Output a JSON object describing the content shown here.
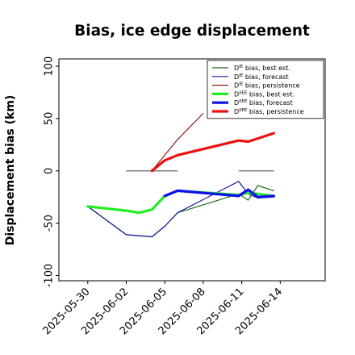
{
  "chart_data": {
    "type": "line",
    "title": "Bias, ice edge displacement",
    "xlabel": "",
    "ylabel": "Displacement bias (km)",
    "ylim": [
      -105,
      107
    ],
    "xlim": [
      "2025-05-27T18:00",
      "2025-06-17T12:00"
    ],
    "yticks": [
      100,
      50,
      0,
      -50,
      -100
    ],
    "xticks": [
      {
        "date": "2025-05-30",
        "label": "2025-05-30",
        "color": "#000000"
      },
      {
        "date": "2025-06-02",
        "label": "2025-06-02",
        "color": "#000000"
      },
      {
        "date": "2025-06-05",
        "label": "2025-06-05",
        "color": "#2e8b2e"
      },
      {
        "date": "2025-06-08",
        "label": "2025-06-08",
        "color": "#000000"
      },
      {
        "date": "2025-06-11",
        "label": "2025-06-11",
        "color": "#000000"
      },
      {
        "date": "2025-06-14",
        "label": "2025-06-14",
        "color": "#000000"
      }
    ],
    "zero_segments": [
      {
        "x": [
          "2025-06-02",
          "2025-06-06T00:00"
        ],
        "y": 0
      },
      {
        "x": [
          "2025-06-10T18:00",
          "2025-06-13T12:00"
        ],
        "y": 0
      }
    ],
    "legend_position": "top-right",
    "series": [
      {
        "name": "D^IE bias, best est.",
        "base": "D",
        "sup": "IE",
        "suffix": " bias, best est.",
        "color": "#1f6b1f",
        "width": 1.2,
        "points": [
          [
            "2025-05-30T00:00",
            -34
          ],
          [
            "2025-06-02T00:00",
            -61
          ],
          [
            "2025-06-04T00:00",
            -63
          ],
          [
            "2025-06-05T00:00",
            -53
          ],
          [
            "2025-06-06T00:00",
            -40
          ],
          [
            "2025-06-10T18:00",
            -22
          ],
          [
            "2025-06-11T12:00",
            -28
          ],
          [
            "2025-06-12T06:00",
            -14
          ],
          [
            "2025-06-13T12:00",
            -19
          ]
        ]
      },
      {
        "name": "D^IE bias, forecast",
        "base": "D",
        "sup": "IE",
        "suffix": " bias, forecast",
        "color": "#1a1aa0",
        "width": 1.2,
        "points": [
          [
            "2025-05-30T00:00",
            -34
          ],
          [
            "2025-06-02T00:00",
            -61
          ],
          [
            "2025-06-04T00:00",
            -63
          ],
          [
            "2025-06-05T00:00",
            -53
          ],
          [
            "2025-06-06T00:00",
            -40
          ],
          [
            "2025-06-10T18:00",
            -10
          ],
          [
            "2025-06-11T12:00",
            -22
          ],
          [
            "2025-06-12T06:00",
            -26
          ],
          [
            "2025-06-13T12:00",
            -25
          ]
        ]
      },
      {
        "name": "D^IE bias, persistence",
        "base": "D",
        "sup": "IE",
        "suffix": " bias, persistence",
        "color": "#8b1a1a",
        "width": 1.2,
        "points": [
          [
            "2025-06-04T00:00",
            0
          ],
          [
            "2025-06-05T00:00",
            15
          ],
          [
            "2025-06-06T00:00",
            30
          ],
          [
            "2025-06-08T00:00",
            55
          ]
        ]
      },
      {
        "name": "D^IIEE bias, best est.",
        "base": "D",
        "sup": "IIEE",
        "suffix": " bias, best est.",
        "color": "#22ee22",
        "width": 3.2,
        "points": [
          [
            "2025-05-30T00:00",
            -34
          ],
          [
            "2025-06-02T00:00",
            -38
          ],
          [
            "2025-06-03T00:00",
            -40
          ],
          [
            "2025-06-04T00:00",
            -37
          ],
          [
            "2025-06-05T00:00",
            -24
          ],
          [
            "2025-06-06T00:00",
            -19
          ],
          [
            "2025-06-10T18:00",
            -23
          ],
          [
            "2025-06-11T12:00",
            -21
          ],
          [
            "2025-06-12T06:00",
            -22
          ],
          [
            "2025-06-13T12:00",
            -24
          ]
        ]
      },
      {
        "name": "D^IIEE bias, forecast",
        "base": "D",
        "sup": "IIEE",
        "suffix": " bias, forecast",
        "color": "#1010ee",
        "width": 3.2,
        "points": [
          [
            "2025-06-05T00:00",
            -24
          ],
          [
            "2025-06-06T00:00",
            -19
          ],
          [
            "2025-06-10T18:00",
            -24
          ],
          [
            "2025-06-11T12:00",
            -18
          ],
          [
            "2025-06-12T06:00",
            -25
          ],
          [
            "2025-06-13T12:00",
            -24
          ]
        ]
      },
      {
        "name": "D^IIEE bias, persistence",
        "base": "D",
        "sup": "IIEE",
        "suffix": " bias, persistence",
        "color": "#ee1010",
        "width": 3.2,
        "points": [
          [
            "2025-06-04T00:00",
            0
          ],
          [
            "2025-06-05T00:00",
            10
          ],
          [
            "2025-06-06T00:00",
            15
          ],
          [
            "2025-06-10T18:00",
            29
          ],
          [
            "2025-06-11T12:00",
            28
          ],
          [
            "2025-06-12T06:00",
            31
          ],
          [
            "2025-06-13T12:00",
            36
          ]
        ]
      }
    ]
  }
}
